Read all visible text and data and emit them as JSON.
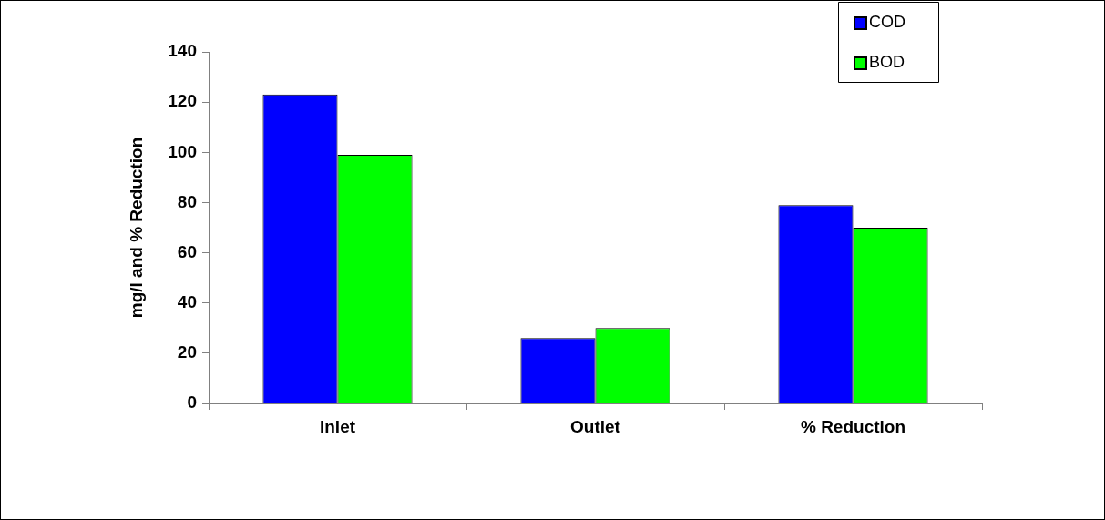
{
  "chart_data": {
    "type": "bar",
    "ylabel": "mg/l and % Reduction",
    "categories": [
      "Inlet",
      "Outlet",
      "% Reduction"
    ],
    "series": [
      {
        "name": "COD",
        "color": "#0000ff",
        "values": [
          123,
          26,
          79
        ]
      },
      {
        "name": "BOD",
        "color": "#00ff00",
        "values": [
          99,
          30,
          70
        ]
      }
    ],
    "ylim": [
      0,
      140
    ],
    "yticks": [
      0,
      20,
      40,
      60,
      80,
      100,
      120,
      140
    ],
    "grid": false,
    "legend": "top right"
  }
}
